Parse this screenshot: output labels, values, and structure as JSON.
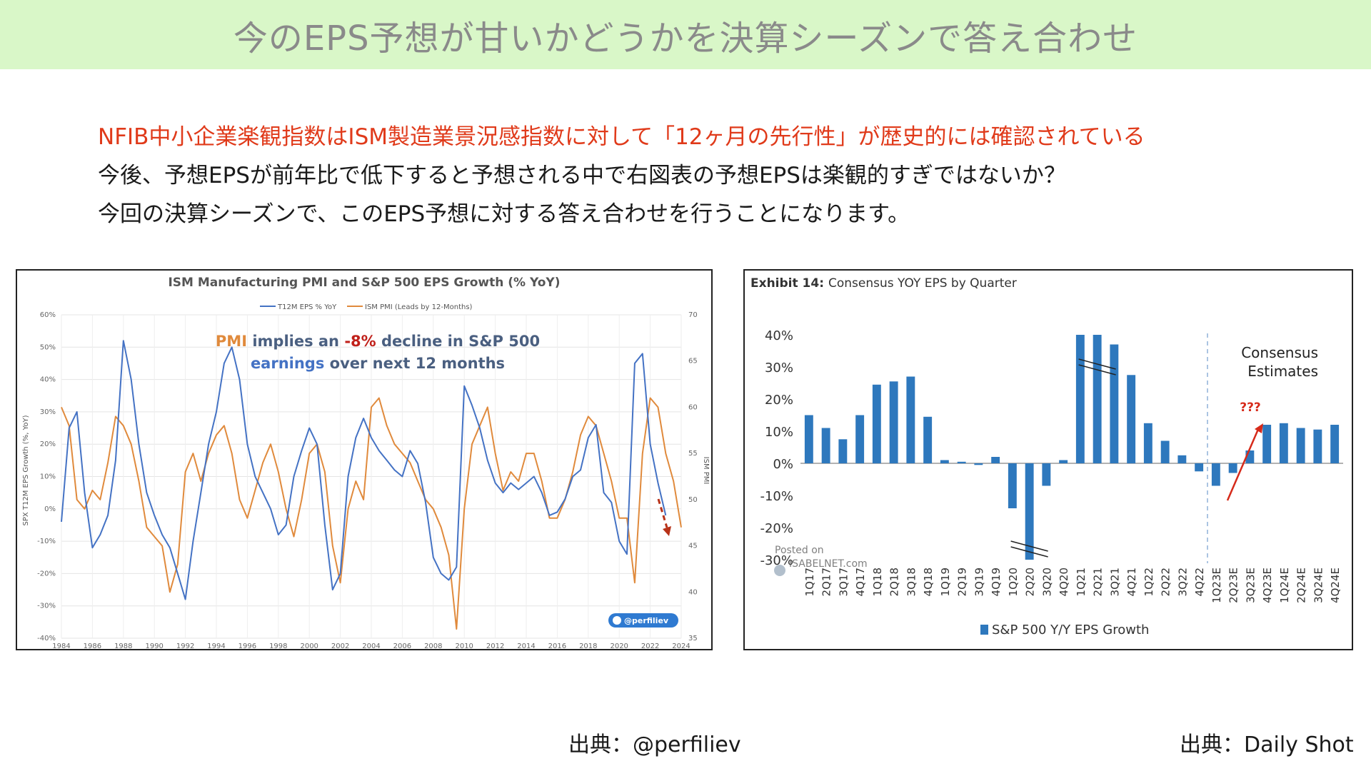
{
  "header": {
    "title": "今のEPS予想が甘いかどうかを決算シーズンで答え合わせ"
  },
  "body_lines": [
    "NFIB中小企業楽観指数はISM製造業景況感指数に対して「12ヶ月の先行性」が歴史的には確認されている",
    "今後、予想EPSが前年比で低下すると予想される中で右図表の予想EPSは楽観的すぎではないか？",
    "今回の決算シーズンで、このEPS予想に対する答え合わせを行うことになります。"
  ],
  "colors": {
    "banner_bg": "#d9f7c8",
    "highlight_red": "#e03a1a",
    "eps_blue": "#4472c4",
    "pmi_orange": "#e08a3c",
    "bar_blue": "#2e78bd"
  },
  "sources": {
    "left": "出典：@perfiliev",
    "right": "出典：Daily Shot"
  },
  "chart_data": [
    {
      "type": "line",
      "title": "ISM Manufacturing PMI and S&P 500 EPS Growth (% YoY)",
      "ylabel": "SPX T12M EPS Growth (%, YoY)",
      "y2label": "ISM PMI",
      "ylim": [
        -40,
        60
      ],
      "y2lim": [
        35,
        70
      ],
      "y_ticks": [
        "-40%",
        "-30%",
        "-20%",
        "-10%",
        "0%",
        "10%",
        "20%",
        "30%",
        "40%",
        "50%",
        "60%"
      ],
      "y2_ticks": [
        "35",
        "40",
        "45",
        "50",
        "55",
        "60",
        "65",
        "70"
      ],
      "x_ticks": [
        "1984",
        "1986",
        "1988",
        "1990",
        "1992",
        "1994",
        "1996",
        "1998",
        "2000",
        "2002",
        "2004",
        "2006",
        "2008",
        "2010",
        "2012",
        "2014",
        "2016",
        "2018",
        "2020",
        "2022",
        "2024"
      ],
      "xlim": [
        1984,
        2024
      ],
      "grid": true,
      "legend_position": "top",
      "annotation": {
        "part1": "PMI",
        "part2": " implies an ",
        "part3": "-8%",
        "part4": " decline in S&P 500",
        "line2a": "earnings",
        "line2b": " over next 12 months"
      },
      "badge": "@perfiliev",
      "series": [
        {
          "name": "T12M EPS % YoY",
          "axis": "left",
          "x": [
            1984,
            1984.5,
            1985,
            1985.5,
            1986,
            1986.5,
            1987,
            1987.5,
            1988,
            1988.5,
            1989,
            1989.5,
            1990,
            1990.5,
            1991,
            1991.5,
            1992,
            1992.5,
            1993,
            1993.5,
            1994,
            1994.5,
            1995,
            1995.5,
            1996,
            1996.5,
            1997,
            1997.5,
            1998,
            1998.5,
            1999,
            1999.5,
            2000,
            2000.5,
            2001,
            2001.5,
            2002,
            2002.5,
            2003,
            2003.5,
            2004,
            2004.5,
            2005,
            2005.5,
            2006,
            2006.5,
            2007,
            2007.5,
            2008,
            2008.5,
            2009,
            2009.5,
            2010,
            2010.5,
            2011,
            2011.5,
            2012,
            2012.5,
            2013,
            2013.5,
            2014,
            2014.5,
            2015,
            2015.5,
            2016,
            2016.5,
            2017,
            2017.5,
            2018,
            2018.5,
            2019,
            2019.5,
            2020,
            2020.5,
            2021,
            2021.5,
            2022,
            2022.5,
            2023
          ],
          "values": [
            -4,
            25,
            30,
            5,
            -12,
            -8,
            -2,
            15,
            52,
            40,
            20,
            5,
            -2,
            -8,
            -12,
            -20,
            -28,
            -10,
            5,
            20,
            30,
            45,
            50,
            40,
            20,
            10,
            5,
            0,
            -8,
            -5,
            10,
            18,
            25,
            20,
            -5,
            -25,
            -20,
            10,
            22,
            28,
            22,
            18,
            15,
            12,
            10,
            18,
            14,
            2,
            -15,
            -20,
            -22,
            -18,
            38,
            32,
            25,
            15,
            8,
            5,
            8,
            6,
            8,
            10,
            5,
            -2,
            -1,
            3,
            10,
            12,
            22,
            26,
            5,
            2,
            -10,
            -14,
            45,
            48,
            20,
            8,
            -2
          ]
        },
        {
          "name": "ISM PMI (Leads by 12-Months)",
          "axis": "right",
          "x": [
            1984,
            1984.5,
            1985,
            1985.5,
            1986,
            1986.5,
            1987,
            1987.5,
            1988,
            1988.5,
            1989,
            1989.5,
            1990,
            1990.5,
            1991,
            1991.5,
            1992,
            1992.5,
            1993,
            1993.5,
            1994,
            1994.5,
            1995,
            1995.5,
            1996,
            1996.5,
            1997,
            1997.5,
            1998,
            1998.5,
            1999,
            1999.5,
            2000,
            2000.5,
            2001,
            2001.5,
            2002,
            2002.5,
            2003,
            2003.5,
            2004,
            2004.5,
            2005,
            2005.5,
            2006,
            2006.5,
            2007,
            2007.5,
            2008,
            2008.5,
            2009,
            2009.5,
            2010,
            2010.5,
            2011,
            2011.5,
            2012,
            2012.5,
            2013,
            2013.5,
            2014,
            2014.5,
            2015,
            2015.5,
            2016,
            2016.5,
            2017,
            2017.5,
            2018,
            2018.5,
            2019,
            2019.5,
            2020,
            2020.5,
            2021,
            2021.5,
            2022,
            2022.5,
            2023,
            2023.5,
            2024
          ],
          "values": [
            60,
            58,
            50,
            49,
            51,
            50,
            54,
            59,
            58,
            56,
            52,
            47,
            46,
            45,
            40,
            43,
            53,
            55,
            52,
            55,
            57,
            58,
            55,
            50,
            48,
            51,
            54,
            56,
            53,
            49,
            46,
            50,
            55,
            56,
            53,
            45,
            41,
            49,
            52,
            50,
            60,
            61,
            58,
            56,
            55,
            54,
            52,
            50,
            49,
            47,
            44,
            36,
            49,
            56,
            58,
            60,
            55,
            51,
            53,
            52,
            55,
            55,
            52,
            48,
            48,
            50,
            53,
            57,
            59,
            58,
            55,
            52,
            48,
            48,
            41,
            55,
            61,
            60,
            55,
            52,
            47
          ]
        }
      ]
    },
    {
      "type": "bar",
      "title_prefix": "Exhibit 14:",
      "title": "Consensus YOY EPS by Quarter",
      "ylim": [
        -30,
        40
      ],
      "y_ticks": [
        "40%",
        "30%",
        "20%",
        "10%",
        "0%",
        "-10%",
        "-20%",
        "-30%"
      ],
      "categories": [
        "1Q17",
        "2Q17",
        "3Q17",
        "4Q17",
        "1Q18",
        "2Q18",
        "3Q18",
        "4Q18",
        "1Q19",
        "2Q19",
        "3Q19",
        "4Q19",
        "1Q20",
        "2Q20",
        "3Q20",
        "4Q20",
        "1Q21",
        "2Q21",
        "3Q21",
        "4Q21",
        "1Q22",
        "2Q22",
        "3Q22",
        "4Q22",
        "1Q23E",
        "2Q23E",
        "3Q23E",
        "4Q23E",
        "1Q24E",
        "2Q24E",
        "3Q24E",
        "4Q24E"
      ],
      "series": [
        {
          "name": "S&P 500 Y/Y EPS Growth",
          "values": [
            15,
            11,
            7.5,
            15,
            24.5,
            25.5,
            27,
            14.5,
            1,
            0.5,
            -0.5,
            2,
            -14,
            -30,
            -7,
            1,
            40,
            40,
            37,
            27.5,
            12.5,
            7,
            2.5,
            -2.5,
            -7,
            -3,
            4,
            12,
            12.5,
            11,
            10.5,
            12
          ]
        }
      ],
      "annotations": {
        "consensus_line1": "Consensus",
        "consensus_line2": "Estimates",
        "question": "???"
      },
      "watermark": {
        "line1": "Posted on",
        "line2": "ISABELNET.com"
      },
      "legend_position": "bottom",
      "grid": false
    }
  ]
}
